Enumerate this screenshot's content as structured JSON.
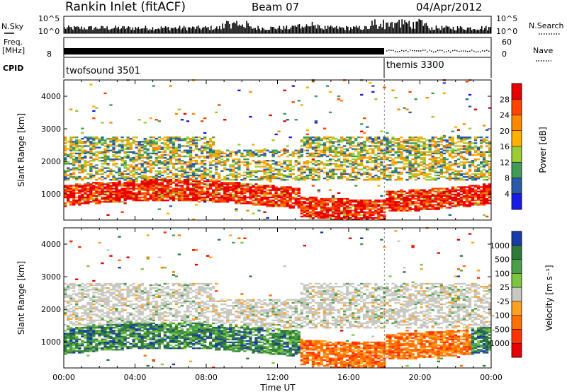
{
  "header": {
    "title": "Rankin Inlet (fitACF)",
    "beam": "Beam 07",
    "date": "04/Apr/2012"
  },
  "strip": {
    "nsky_label": "N.Sky",
    "nsky_ticks": [
      "10^5",
      "10^0"
    ],
    "nsearch_label": "N.Search",
    "freq_label": "Freq.",
    "freq_unit": "[MHz]",
    "freq_tick": "8",
    "nave_label": "Nave",
    "nave_ticks": [
      "60",
      "0"
    ],
    "cpid_label": "CPID",
    "cpid_segments": [
      {
        "name": "twofsound 3501",
        "start_h": 0,
        "end_h": 18
      },
      {
        "name": "themis 3300",
        "start_h": 18,
        "end_h": 24
      }
    ]
  },
  "chart_data": [
    {
      "type": "heatmap",
      "name": "power",
      "ylabel": "Slant Range [km]",
      "yticks": [
        "1000",
        "2000",
        "3000",
        "4000"
      ],
      "ylim": [
        200,
        4500
      ],
      "xlim_hours": [
        0,
        24
      ],
      "colorbar": {
        "label": "Power [dB]",
        "ticks": [
          "28",
          "24",
          "20",
          "16",
          "12",
          "8",
          "4"
        ],
        "colors": [
          "#e60000",
          "#ff4400",
          "#ff8800",
          "#ffb000",
          "#9ccc33",
          "#3f9b55",
          "#2a5aa8",
          "#1a1ae6"
        ]
      },
      "bands": [
        {
          "lo": 600,
          "hi": 1200,
          "level": "high"
        },
        {
          "lo": 1400,
          "hi": 2100,
          "level": "medium"
        },
        {
          "lo": 2100,
          "hi": 2800,
          "level": "mixed"
        }
      ]
    },
    {
      "type": "heatmap",
      "name": "velocity",
      "ylabel": "Slant Range [km]",
      "yticks": [
        "1000",
        "2000",
        "3000",
        "4000"
      ],
      "ylim": [
        200,
        4500
      ],
      "xlabel": "Time UT",
      "xticks": [
        "00:00",
        "04:00",
        "08:00",
        "12:00",
        "16:00",
        "20:00",
        "00:00"
      ],
      "xlim_hours": [
        0,
        24
      ],
      "colorbar": {
        "label": "Velocity [m s⁻¹]",
        "ticks": [
          "1000",
          "500",
          "100",
          "25",
          "-25",
          "-100",
          "-500",
          "-1000"
        ],
        "colors": [
          "#1a3aa8",
          "#2e7a3a",
          "#4aa04a",
          "#7dc642",
          "#c8c8c0",
          "#ffa020",
          "#ff7000",
          "#ff3300",
          "#e60000"
        ]
      },
      "bands": [
        {
          "lo": 600,
          "hi": 1400,
          "level": "green"
        },
        {
          "lo": 1500,
          "hi": 2800,
          "level": "grey"
        }
      ]
    }
  ]
}
